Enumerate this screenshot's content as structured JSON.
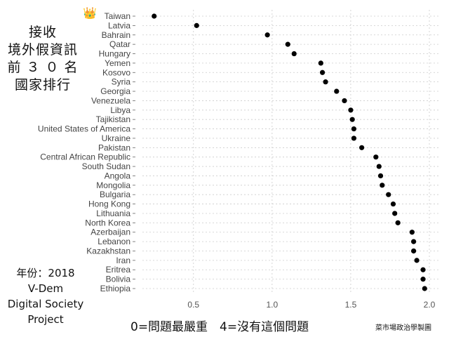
{
  "title_lines": [
    "接收",
    "境外假資訊",
    "前 ３ ０ 名",
    "國家排行"
  ],
  "source_lines": [
    "年份：2018",
    "V-Dem",
    "Digital Society",
    "Project"
  ],
  "xlabel_text": "0=問題最嚴重　4=沒有這個問題",
  "credit_text": "菜市場政治學製圖",
  "crown_glyph": "👑",
  "colors": {
    "dot": "#000000",
    "grid": "#cccccc",
    "text": "#444444"
  },
  "chart_data": {
    "type": "scatter",
    "orientation": "horizontal-dot",
    "categories": [
      "Taiwan",
      "Latvia",
      "Bahrain",
      "Qatar",
      "Hungary",
      "Yemen",
      "Kosovo",
      "Syria",
      "Georgia",
      "Venezuela",
      "Libya",
      "Tajikistan",
      "United States of America",
      "Ukraine",
      "Pakistan",
      "Central African Republic",
      "South Sudan",
      "Angola",
      "Mongolia",
      "Bulgaria",
      "Hong Kong",
      "Lithuania",
      "North Korea",
      "Azerbaijan",
      "Lebanon",
      "Kazakhstan",
      "Iran",
      "Eritrea",
      "Bolivia",
      "Ethiopia"
    ],
    "values": [
      0.25,
      0.52,
      0.97,
      1.1,
      1.14,
      1.31,
      1.32,
      1.34,
      1.41,
      1.46,
      1.5,
      1.51,
      1.52,
      1.52,
      1.57,
      1.66,
      1.68,
      1.69,
      1.7,
      1.74,
      1.77,
      1.78,
      1.8,
      1.89,
      1.9,
      1.9,
      1.92,
      1.96,
      1.96,
      1.97
    ],
    "xticks": [
      0.5,
      1.0,
      1.5,
      2.0
    ],
    "xtick_labels": [
      "0.5",
      "1.0",
      "1.5",
      "2.0"
    ],
    "xlim": [
      0.22,
      2.0
    ],
    "grid": true,
    "title": "",
    "xlabel": "",
    "ylabel": ""
  }
}
